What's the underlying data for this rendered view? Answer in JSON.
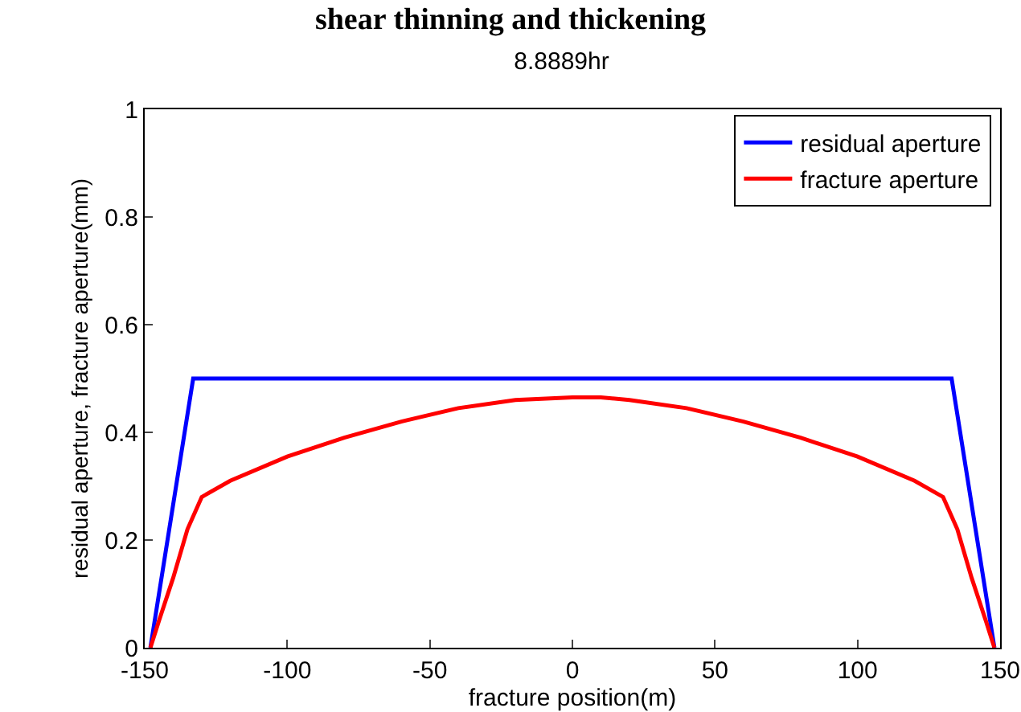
{
  "chart_data": {
    "type": "line",
    "title": "shear thinning and thickening",
    "subtitle": "8.8889hr",
    "xlabel": "fracture position(m)",
    "ylabel": "residual aperture, fracture aperture(mm)",
    "series": [
      {
        "name": "residual aperture",
        "color": "#0000ff",
        "x": [
          -148,
          -133,
          133,
          148
        ],
        "values": [
          0,
          0.5,
          0.5,
          0
        ]
      },
      {
        "name": "fracture aperture",
        "color": "#ff0000",
        "x": [
          -148,
          -145,
          -140,
          -135,
          -130,
          -120,
          -100,
          -80,
          -60,
          -40,
          -20,
          0,
          10,
          20,
          40,
          60,
          80,
          100,
          120,
          130,
          135,
          140,
          145,
          148
        ],
        "values": [
          0,
          0.05,
          0.13,
          0.22,
          0.28,
          0.31,
          0.355,
          0.39,
          0.42,
          0.445,
          0.46,
          0.465,
          0.465,
          0.46,
          0.445,
          0.42,
          0.39,
          0.355,
          0.31,
          0.28,
          0.22,
          0.13,
          0.05,
          0
        ]
      }
    ],
    "xlim": [
      -150,
      150
    ],
    "xticks": [
      -150,
      -100,
      -50,
      0,
      50,
      100,
      150
    ],
    "ylim": [
      0,
      1
    ],
    "yticks": [
      0,
      0.2,
      0.4,
      0.6,
      0.8,
      1
    ],
    "grid": false,
    "legend": "top right",
    "marker": "none",
    "line_style": "solid"
  }
}
